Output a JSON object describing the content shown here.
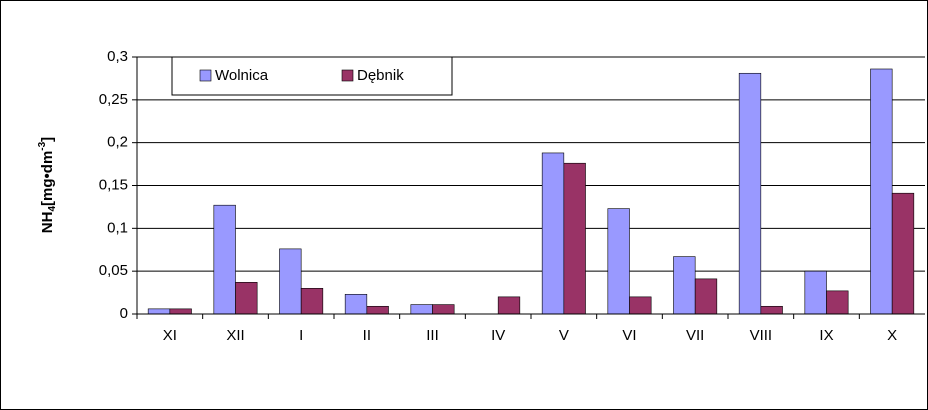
{
  "chart_data": {
    "type": "bar",
    "y_label": {
      "main": "NH",
      "sub": "4",
      "mid": "[mg•dm",
      "sup": "-3",
      "end": "]"
    },
    "categories": [
      "XI",
      "XII",
      "I",
      "II",
      "III",
      "IV",
      "V",
      "VI",
      "VII",
      "VIII",
      "IX",
      "X"
    ],
    "series": [
      {
        "name": "Wolnica",
        "color": "#9999ff",
        "values": [
          0.006,
          0.127,
          0.076,
          0.023,
          0.011,
          null,
          0.188,
          0.123,
          0.067,
          0.281,
          0.05,
          0.286
        ]
      },
      {
        "name": "Dębnik",
        "color": "#993366",
        "values": [
          0.006,
          0.037,
          0.03,
          0.009,
          0.011,
          0.02,
          0.176,
          0.02,
          0.041,
          0.009,
          0.027,
          0.141
        ]
      }
    ],
    "ylim": [
      0,
      0.3
    ],
    "yticks": [
      0,
      {
        "value": 0.05,
        "label": "0,05"
      },
      {
        "value": 0.1,
        "label": "0,1"
      },
      {
        "value": 0.15,
        "label": "0,15"
      },
      {
        "value": 0.2,
        "label": "0,2"
      },
      {
        "value": 0.25,
        "label": "0,25"
      },
      {
        "value": 0.3,
        "label": "0,3"
      }
    ],
    "grid": true
  }
}
